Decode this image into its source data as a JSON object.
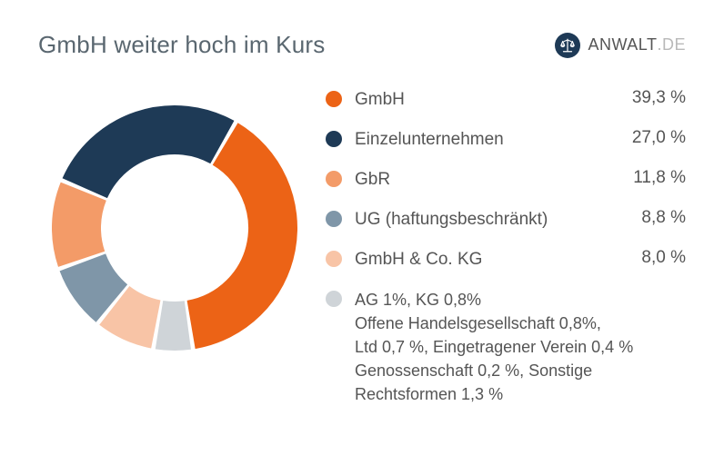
{
  "title": "GmbH weiter hoch im Kurs",
  "brand": {
    "name_strong": "ANWALT",
    "name_light": ".DE"
  },
  "chart": {
    "type": "donut",
    "background_color": "#ffffff",
    "stroke_width": 54,
    "inner_radius_ratio": 0.45,
    "segments": [
      {
        "label": "GmbH",
        "value": 39.3,
        "value_str": "39,3 %",
        "color": "#ec6316"
      },
      {
        "label": "AG/KG/OHG/Ltd/eV/Gen./Sonst",
        "value": 5.2,
        "value_str": "5,2 %",
        "color": "#cfd4d8"
      },
      {
        "label": "GmbH & Co. KG",
        "value": 8.0,
        "value_str": "8,0 %",
        "color": "#f8c4a6"
      },
      {
        "label": "UG (haftungsbeschränkt)",
        "value": 8.8,
        "value_str": "8,8 %",
        "color": "#7f96a8"
      },
      {
        "label": "GbR",
        "value": 11.8,
        "value_str": "11,8 %",
        "color": "#f39b68"
      },
      {
        "label": "Einzelunternehmen",
        "value": 27.0,
        "value_str": "27,0 %",
        "color": "#1e3a56"
      }
    ],
    "start_angle_deg": -60,
    "gap_deg": 2
  },
  "legend": [
    {
      "label": "GmbH",
      "value": "39,3 %",
      "color": "#ec6316"
    },
    {
      "label": "Einzelunternehmen",
      "value": "27,0 %",
      "color": "#1e3a56"
    },
    {
      "label": "GbR",
      "value": "11,8 %",
      "color": "#f39b68"
    },
    {
      "label": "UG (haftungsbeschränkt)",
      "value": "8,8 %",
      "color": "#7f96a8"
    },
    {
      "label": "GmbH & Co. KG",
      "value": "8,0 %",
      "color": "#f8c4a6"
    },
    {
      "label": "AG 1%,  KG 0,8%\nOffene Handelsgesellschaft 0,8%,\nLtd 0,7 %, Eingetragener Verein 0,4 %\nGenossenschaft 0,2 %, Sonstige\nRechtsformen 1,3 %",
      "value": "",
      "color": "#cfd4d8",
      "multiline": true
    }
  ],
  "typography": {
    "title_fontsize": 26,
    "legend_fontsize": 19,
    "brand_fontsize": 18
  }
}
